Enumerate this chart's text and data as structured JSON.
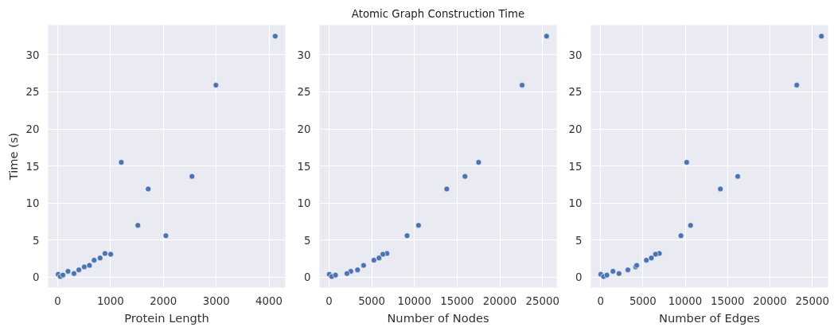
{
  "chart_data": [
    {
      "type": "scatter",
      "xlabel": "Protein Length",
      "ylabel": "Time (s)",
      "grid": true,
      "marker": "circle",
      "x": [
        10,
        50,
        100,
        196,
        309,
        401,
        504,
        602,
        690,
        803,
        896,
        1004,
        1204,
        1518,
        1714,
        2048,
        2542,
        2995,
        4117
      ],
      "series": [
        {
          "color": "#4c72b0",
          "values": [
            0.4,
            0.1,
            0.3,
            0.8,
            0.5,
            1.0,
            1.4,
            1.6,
            2.3,
            2.6,
            3.2,
            3.1,
            15.5,
            7.0,
            11.9,
            5.6,
            13.6,
            25.9,
            32.5
          ]
        }
      ],
      "xlim": [
        -180,
        4308
      ],
      "ylim": [
        -1.4,
        34
      ],
      "xticks": [
        0,
        1000,
        2000,
        3000,
        4000
      ],
      "yticks": [
        0,
        5,
        10,
        15,
        20,
        25,
        30
      ]
    },
    {
      "type": "scatter",
      "title": "Atomic Graph Construction Time",
      "xlabel": "Number of Nodes",
      "grid": true,
      "marker": "circle",
      "x": [
        30,
        320,
        760,
        2550,
        2100,
        3340,
        3900,
        4045,
        5255,
        5860,
        6785,
        6305,
        17520,
        10480,
        13790,
        9140,
        15920,
        22610,
        25480
      ],
      "series": [
        {
          "color": "#4c72b0",
          "values": [
            0.4,
            0.1,
            0.3,
            0.8,
            0.5,
            1.0,
            null,
            1.6,
            2.3,
            2.6,
            3.2,
            3.1,
            15.5,
            7.0,
            11.9,
            5.6,
            13.6,
            25.9,
            32.5
          ]
        }
      ],
      "xlim": [
        -1115,
        26660
      ],
      "ylim": [
        -1.4,
        34
      ],
      "xticks": [
        0,
        5000,
        10000,
        15000,
        20000,
        25000
      ],
      "yticks": [
        0,
        5,
        10,
        15,
        20,
        25,
        30
      ]
    },
    {
      "type": "scatter",
      "xlabel": "Number of Edges",
      "grid": true,
      "marker": "circle",
      "x": [
        30,
        360,
        750,
        1470,
        2180,
        3230,
        4140,
        4270,
        5410,
        6000,
        6940,
        6490,
        10170,
        10630,
        14150,
        9490,
        16200,
        23170,
        26080
      ],
      "series": [
        {
          "color": "#4c72b0",
          "values": [
            0.4,
            0.1,
            0.3,
            0.8,
            0.5,
            1.0,
            1.4,
            1.6,
            2.3,
            2.6,
            3.2,
            3.1,
            15.5,
            7.0,
            11.9,
            5.6,
            13.6,
            25.9,
            32.5
          ]
        }
      ],
      "xlim": [
        -1140,
        26860
      ],
      "ylim": [
        -1.4,
        34
      ],
      "xticks": [
        0,
        5000,
        10000,
        15000,
        20000,
        25000
      ],
      "yticks": [
        0,
        5,
        10,
        15,
        20,
        25,
        30
      ]
    }
  ]
}
